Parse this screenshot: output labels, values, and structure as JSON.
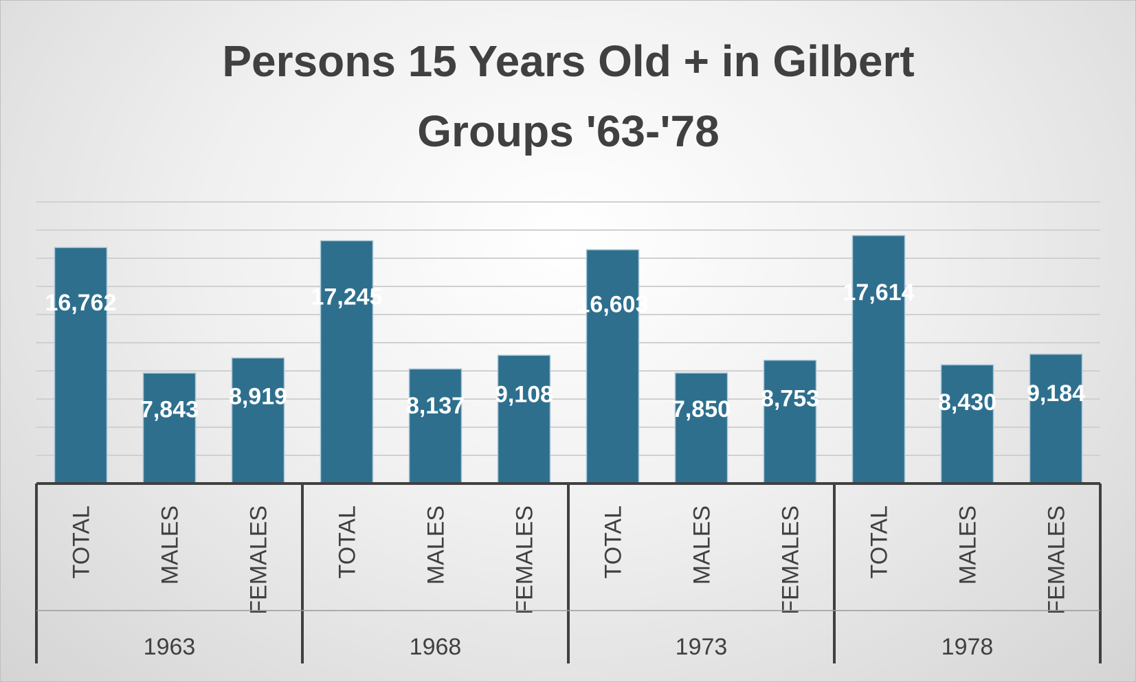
{
  "chart_data": {
    "type": "bar",
    "title_lines": [
      "Persons 15 Years Old + in Gilbert",
      "Groups '63-'78"
    ],
    "groups": [
      {
        "label": "1963",
        "categories": [
          "TOTAL",
          "MALES",
          "FEMALES"
        ],
        "values": [
          16762,
          7843,
          8919
        ],
        "value_labels": [
          "16,762",
          "7,843",
          "8,919"
        ]
      },
      {
        "label": "1968",
        "categories": [
          "TOTAL",
          "MALES",
          "FEMALES"
        ],
        "values": [
          17245,
          8137,
          9108
        ],
        "value_labels": [
          "17,245",
          "8,137",
          "9,108"
        ]
      },
      {
        "label": "1973",
        "categories": [
          "TOTAL",
          "MALES",
          "FEMALES"
        ],
        "values": [
          16603,
          7850,
          8753
        ],
        "value_labels": [
          "16,603",
          "7,850",
          "8,753"
        ]
      },
      {
        "label": "1978",
        "categories": [
          "TOTAL",
          "MALES",
          "FEMALES"
        ],
        "values": [
          17614,
          8430,
          9184
        ],
        "value_labels": [
          "17,614",
          "8,430",
          "9,184"
        ]
      }
    ],
    "ylim": [
      0,
      20000
    ],
    "y_gridline_step": 2000,
    "grid": true,
    "legend": "none",
    "bar_color": "#2e6f8e",
    "grid_color": "#d0d0d0",
    "axis_color": "#404040"
  }
}
